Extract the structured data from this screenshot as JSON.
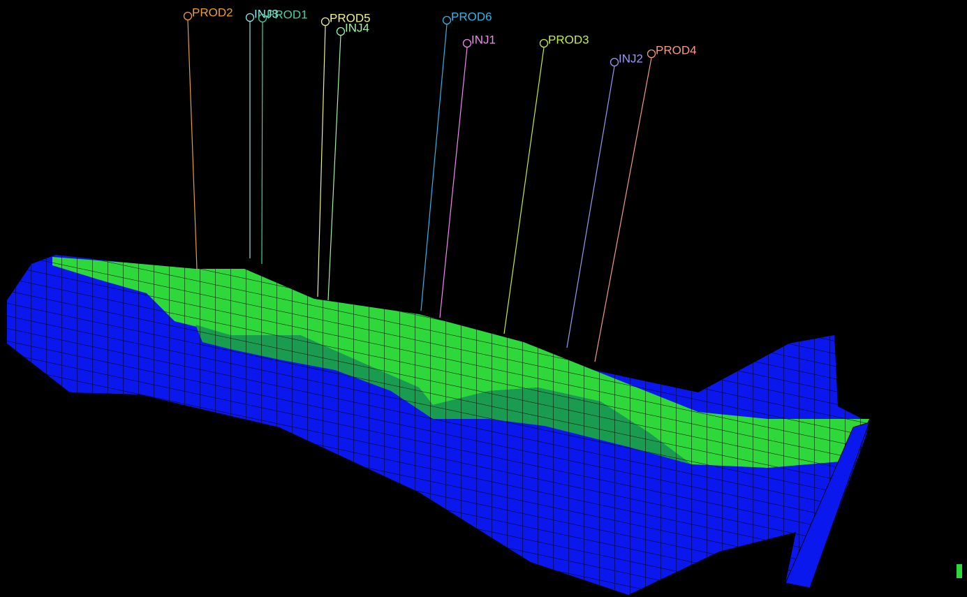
{
  "wells": [
    {
      "label": "PROD2",
      "color": "#e8a030"
    },
    {
      "label": "INJ3",
      "color": "#8fe6e6"
    },
    {
      "label": "PROD1",
      "color": "#3fd4a0"
    },
    {
      "label": "PROD5",
      "color": "#f2f08a"
    },
    {
      "label": "INJ4",
      "color": "#a6f0a6"
    },
    {
      "label": "PROD6",
      "color": "#36b4e6"
    },
    {
      "label": "INJ1",
      "color": "#f28af2"
    },
    {
      "label": "PROD3",
      "color": "#c4f034"
    },
    {
      "label": "INJ2",
      "color": "#9a9af2"
    },
    {
      "label": "PROD4",
      "color": "#f29a8a"
    }
  ]
}
